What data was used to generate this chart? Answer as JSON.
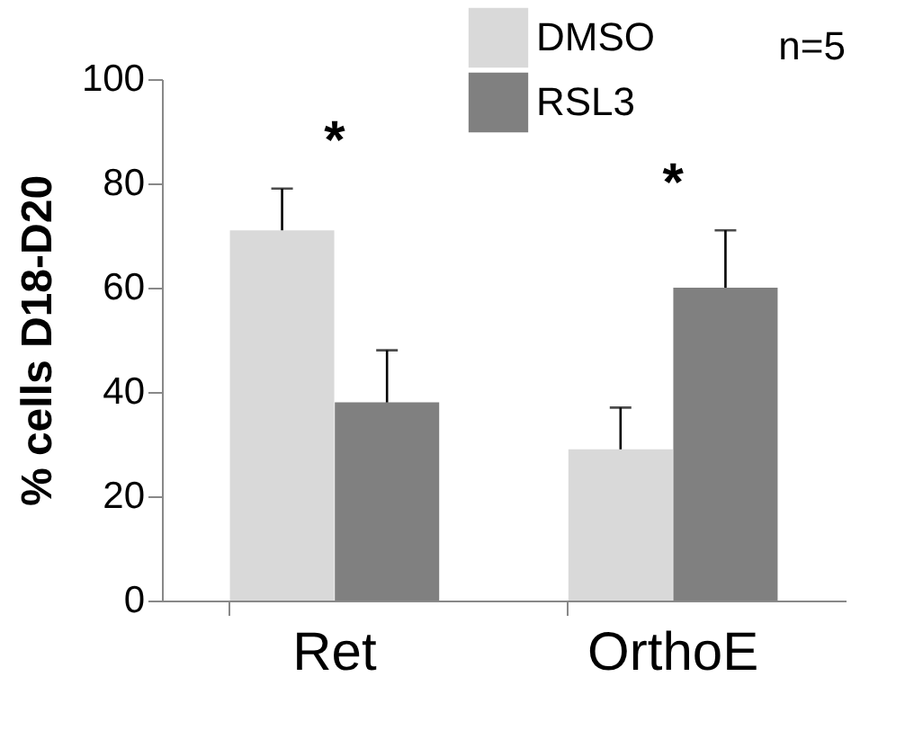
{
  "chart_data": {
    "type": "bar",
    "ylabel": "% cells D18-D20",
    "categories": [
      "Ret",
      "OrthoE"
    ],
    "series": [
      {
        "name": "DMSO",
        "color": "#d9d9d9",
        "values": [
          71,
          29
        ],
        "errors": [
          [
            71,
            79
          ],
          [
            29,
            37
          ]
        ]
      },
      {
        "name": "RSL3",
        "color": "#808080",
        "values": [
          38,
          60
        ],
        "errors": [
          [
            38,
            48
          ],
          [
            60,
            71
          ]
        ]
      }
    ],
    "ylim": [
      0,
      100
    ],
    "yticks": [
      0,
      20,
      40,
      60,
      80,
      100
    ],
    "grid": false,
    "legend": "top right",
    "annotations": [
      "*",
      "*",
      "n=5"
    ]
  }
}
